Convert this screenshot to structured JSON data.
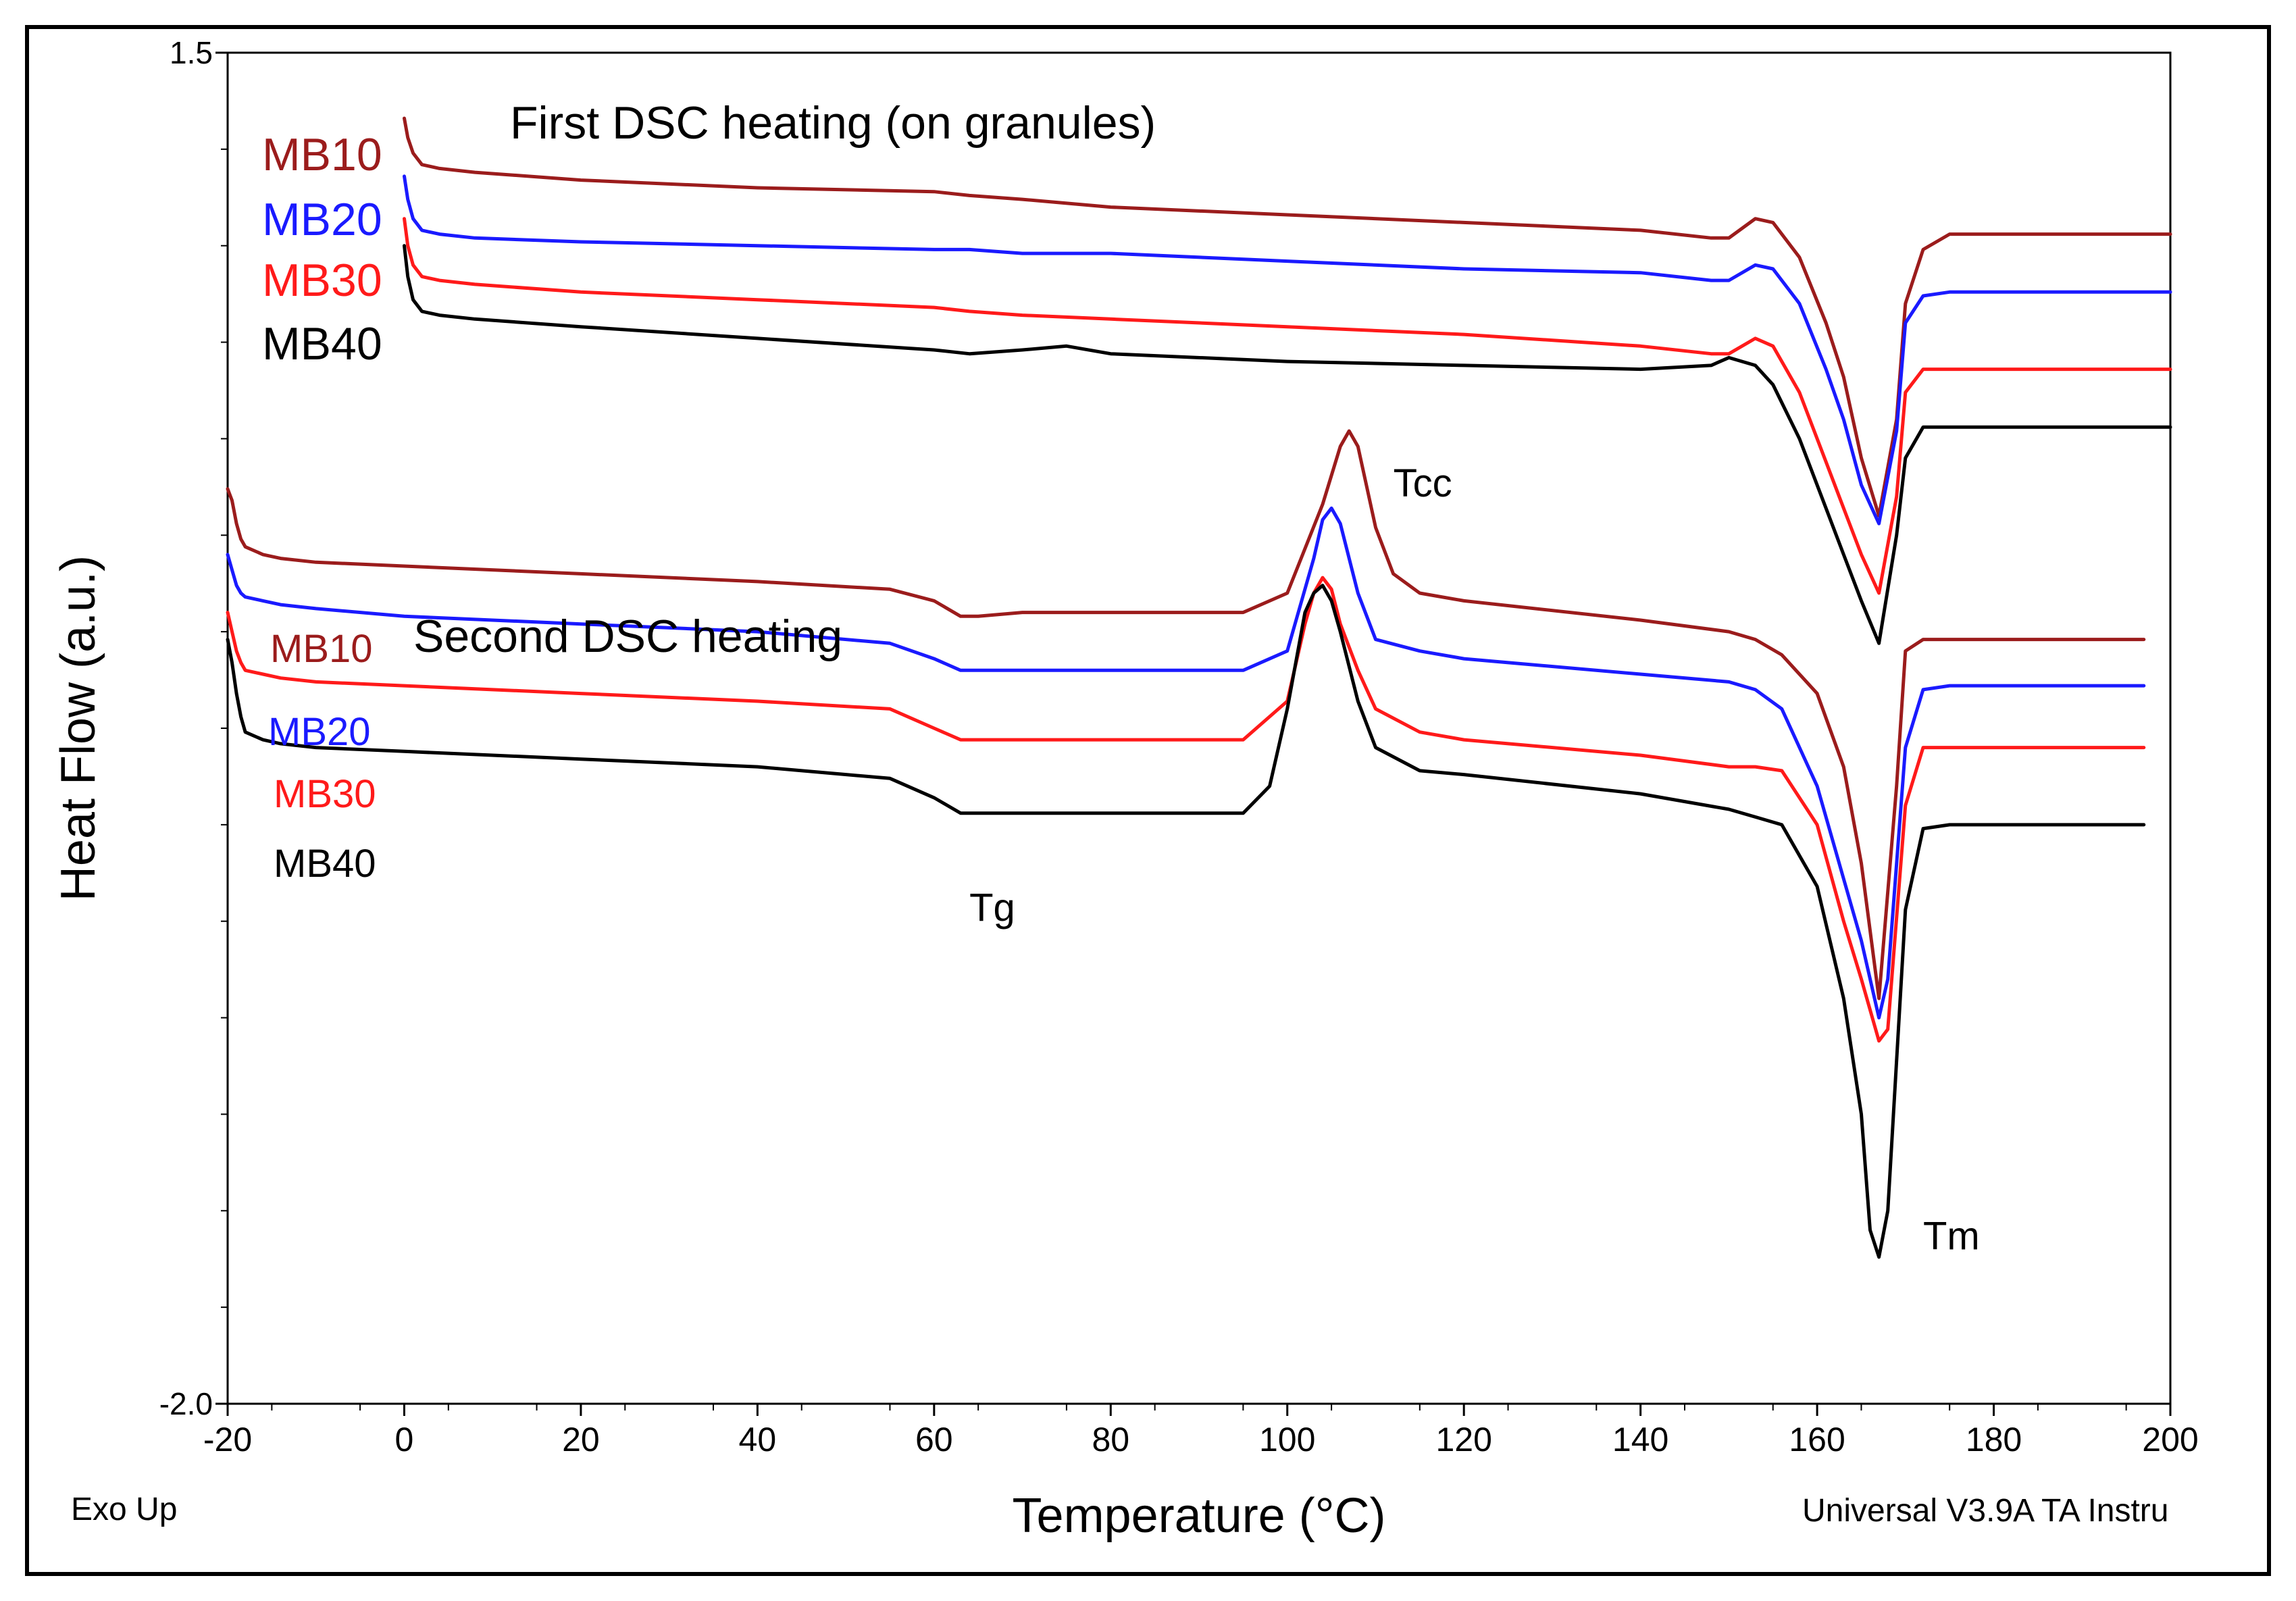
{
  "chart_data": {
    "type": "line",
    "xlabel": "Temperature (°C)",
    "ylabel": "Heat Flow (a.u.)",
    "xlim": [
      -20,
      200
    ],
    "ylim": [
      -2.0,
      1.5
    ],
    "x_ticks": [
      -20,
      0,
      20,
      40,
      60,
      80,
      100,
      120,
      140,
      160,
      180,
      200
    ],
    "y_tick_labels": [
      "1.5",
      "-2.0"
    ],
    "y_ticks": [
      1.5,
      -2.0
    ],
    "corner_left": "Exo Up",
    "corner_right": "Universal V3.9A TA Instru",
    "colors": {
      "MB10": "#9b1c1c",
      "MB20": "#1a1aff",
      "MB30": "#ff1a1a",
      "MB40": "#000000"
    },
    "groups": [
      {
        "title": "First DSC heating (on granules)",
        "series": [
          {
            "name": "MB10",
            "x": [
              0,
              0.4,
              1,
              2,
              4,
              8,
              20,
              40,
              60,
              64,
              70,
              80,
              100,
              120,
              140,
              148,
              150,
              153,
              155,
              158,
              161,
              163,
              165,
              167,
              169,
              170,
              172,
              175,
              185,
              200
            ],
            "y": [
              1.33,
              1.28,
              1.24,
              1.21,
              1.2,
              1.19,
              1.17,
              1.15,
              1.14,
              1.13,
              1.12,
              1.1,
              1.08,
              1.06,
              1.04,
              1.02,
              1.02,
              1.07,
              1.06,
              0.97,
              0.8,
              0.66,
              0.45,
              0.3,
              0.55,
              0.85,
              0.99,
              1.03,
              1.03,
              1.03
            ]
          },
          {
            "name": "MB20",
            "x": [
              0,
              0.4,
              1,
              2,
              4,
              8,
              20,
              40,
              60,
              64,
              70,
              80,
              100,
              120,
              140,
              148,
              150,
              153,
              155,
              158,
              161,
              163,
              165,
              167,
              169,
              170,
              172,
              175,
              185,
              200
            ],
            "y": [
              1.18,
              1.12,
              1.07,
              1.04,
              1.03,
              1.02,
              1.01,
              1.0,
              0.99,
              0.99,
              0.98,
              0.98,
              0.96,
              0.94,
              0.93,
              0.91,
              0.91,
              0.95,
              0.94,
              0.85,
              0.68,
              0.55,
              0.38,
              0.28,
              0.52,
              0.8,
              0.87,
              0.88,
              0.88,
              0.88
            ]
          },
          {
            "name": "MB30",
            "x": [
              0,
              0.4,
              1,
              2,
              4,
              8,
              20,
              40,
              60,
              64,
              70,
              80,
              100,
              120,
              140,
              148,
              150,
              153,
              155,
              158,
              161,
              163,
              165,
              167,
              169,
              170,
              172,
              175,
              185,
              200
            ],
            "y": [
              1.07,
              1.0,
              0.95,
              0.92,
              0.91,
              0.9,
              0.88,
              0.86,
              0.84,
              0.83,
              0.82,
              0.81,
              0.79,
              0.77,
              0.74,
              0.72,
              0.72,
              0.76,
              0.74,
              0.62,
              0.44,
              0.32,
              0.2,
              0.1,
              0.35,
              0.62,
              0.68,
              0.68,
              0.68,
              0.68
            ]
          },
          {
            "name": "MB40",
            "x": [
              0,
              0.4,
              1,
              2,
              4,
              8,
              20,
              40,
              60,
              64,
              70,
              75,
              80,
              100,
              120,
              140,
              148,
              150,
              153,
              155,
              158,
              161,
              163,
              165,
              167,
              169,
              170,
              172,
              175,
              185,
              200
            ],
            "y": [
              1.0,
              0.92,
              0.86,
              0.83,
              0.82,
              0.81,
              0.79,
              0.76,
              0.73,
              0.72,
              0.73,
              0.74,
              0.72,
              0.7,
              0.69,
              0.68,
              0.69,
              0.71,
              0.69,
              0.64,
              0.5,
              0.32,
              0.2,
              0.08,
              -0.03,
              0.25,
              0.45,
              0.53,
              0.53,
              0.53,
              0.53
            ]
          }
        ]
      },
      {
        "title": "Second DSC heating",
        "series": [
          {
            "name": "MB10",
            "x": [
              -20,
              -19.5,
              -19,
              -18.5,
              -18,
              -16,
              -14,
              -10,
              0,
              20,
              40,
              55,
              60,
              63,
              65,
              70,
              80,
              95,
              100,
              104,
              106,
              107,
              108,
              110,
              112,
              115,
              120,
              140,
              150,
              153,
              156,
              160,
              163,
              165,
              167,
              169,
              170,
              172,
              175,
              185,
              197
            ],
            "y": [
              0.37,
              0.34,
              0.28,
              0.24,
              0.22,
              0.2,
              0.19,
              0.18,
              0.17,
              0.15,
              0.13,
              0.11,
              0.08,
              0.04,
              0.04,
              0.05,
              0.05,
              0.05,
              0.1,
              0.33,
              0.48,
              0.52,
              0.48,
              0.27,
              0.15,
              0.1,
              0.08,
              0.03,
              0.0,
              -0.02,
              -0.06,
              -0.16,
              -0.35,
              -0.6,
              -0.95,
              -0.4,
              -0.05,
              -0.02,
              -0.02,
              -0.02,
              -0.02
            ]
          },
          {
            "name": "MB20",
            "x": [
              -20,
              -19.5,
              -19,
              -18.5,
              -18,
              -16,
              -14,
              -10,
              0,
              20,
              40,
              55,
              60,
              63,
              65,
              70,
              80,
              95,
              100,
              103,
              104,
              105,
              106,
              108,
              110,
              115,
              120,
              140,
              150,
              153,
              156,
              160,
              163,
              165,
              167,
              168,
              170,
              172,
              175,
              185,
              197
            ],
            "y": [
              0.2,
              0.16,
              0.12,
              0.1,
              0.09,
              0.08,
              0.07,
              0.06,
              0.04,
              0.02,
              0.0,
              -0.03,
              -0.07,
              -0.1,
              -0.1,
              -0.1,
              -0.1,
              -0.1,
              -0.05,
              0.19,
              0.29,
              0.32,
              0.28,
              0.1,
              -0.02,
              -0.05,
              -0.07,
              -0.11,
              -0.13,
              -0.15,
              -0.2,
              -0.4,
              -0.64,
              -0.8,
              -1.0,
              -0.9,
              -0.3,
              -0.15,
              -0.14,
              -0.14,
              -0.14
            ]
          },
          {
            "name": "MB30",
            "x": [
              -20,
              -19.5,
              -19,
              -18.5,
              -18,
              -16,
              -14,
              -10,
              0,
              20,
              40,
              55,
              60,
              63,
              65,
              70,
              80,
              95,
              100,
              102,
              103,
              104,
              105,
              106,
              108,
              110,
              115,
              120,
              140,
              150,
              153,
              156,
              160,
              163,
              165,
              167,
              168,
              170,
              172,
              175,
              185,
              197
            ],
            "y": [
              0.05,
              0.0,
              -0.05,
              -0.08,
              -0.1,
              -0.11,
              -0.12,
              -0.13,
              -0.14,
              -0.16,
              -0.18,
              -0.2,
              -0.25,
              -0.28,
              -0.28,
              -0.28,
              -0.28,
              -0.28,
              -0.18,
              0.02,
              0.1,
              0.14,
              0.11,
              0.02,
              -0.1,
              -0.2,
              -0.26,
              -0.28,
              -0.32,
              -0.35,
              -0.35,
              -0.36,
              -0.5,
              -0.75,
              -0.9,
              -1.06,
              -1.03,
              -0.45,
              -0.3,
              -0.3,
              -0.3,
              -0.3
            ]
          },
          {
            "name": "MB40",
            "x": [
              -20,
              -19.5,
              -19,
              -18.5,
              -18,
              -16,
              -14,
              -10,
              0,
              20,
              40,
              55,
              60,
              63,
              65,
              70,
              80,
              95,
              98,
              100,
              102,
              103,
              104,
              105,
              106,
              108,
              110,
              115,
              120,
              140,
              150,
              153,
              156,
              160,
              163,
              165,
              166,
              167,
              168,
              170,
              172,
              175,
              185,
              197
            ],
            "y": [
              -0.02,
              -0.08,
              -0.16,
              -0.22,
              -0.26,
              -0.28,
              -0.29,
              -0.3,
              -0.31,
              -0.33,
              -0.35,
              -0.38,
              -0.43,
              -0.47,
              -0.47,
              -0.47,
              -0.47,
              -0.47,
              -0.4,
              -0.2,
              0.05,
              0.1,
              0.12,
              0.08,
              0.0,
              -0.18,
              -0.3,
              -0.36,
              -0.37,
              -0.42,
              -0.46,
              -0.48,
              -0.5,
              -0.66,
              -0.95,
              -1.25,
              -1.55,
              -1.62,
              -1.5,
              -0.72,
              -0.51,
              -0.5,
              -0.5,
              -0.5
            ]
          }
        ]
      }
    ],
    "annotations": [
      {
        "text": "Tcc",
        "x": 112,
        "y": 0.35
      },
      {
        "text": "Tg",
        "x": 64,
        "y": -0.75
      },
      {
        "text": "Tm",
        "x": 172,
        "y": -1.6
      }
    ]
  }
}
